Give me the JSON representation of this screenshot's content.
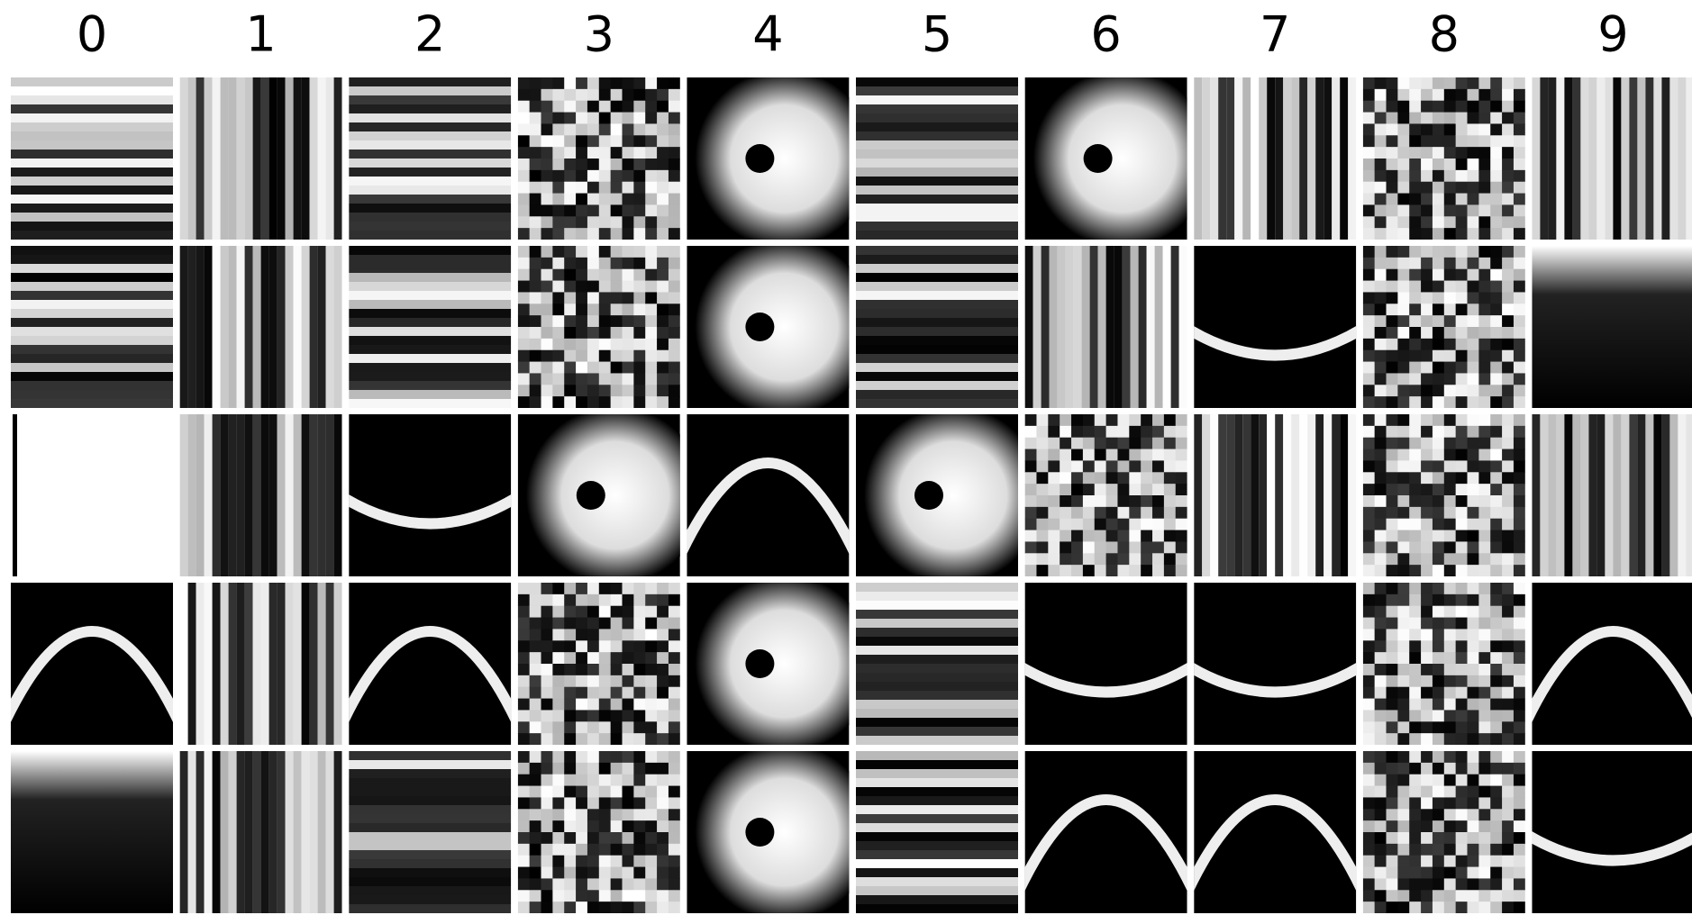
{
  "columns": [
    "0",
    "1",
    "2",
    "3",
    "4",
    "5",
    "6",
    "7",
    "8",
    "9"
  ]
}
